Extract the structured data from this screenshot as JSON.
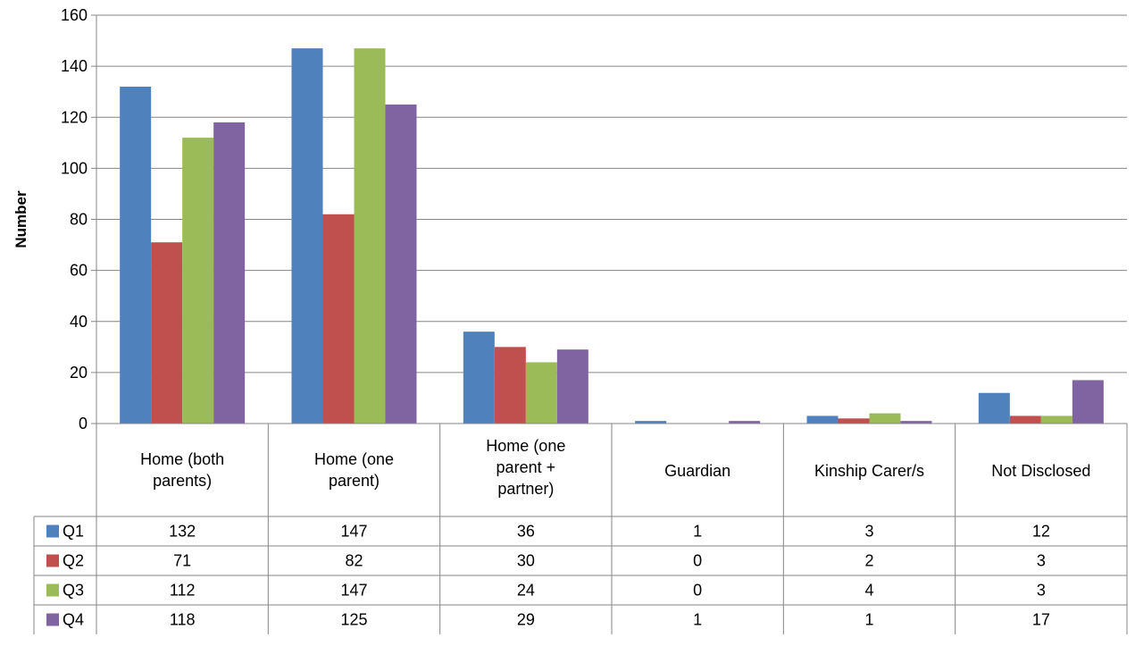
{
  "chart_data": {
    "type": "bar",
    "ylabel": "Number",
    "xlabel": "",
    "ylim": [
      0,
      160
    ],
    "yticks": [
      0,
      20,
      40,
      60,
      80,
      100,
      120,
      140,
      160
    ],
    "grid": true,
    "legend": "data-table-left",
    "categories": [
      [
        "Home (both",
        "parents)"
      ],
      [
        "Home (one",
        "parent)"
      ],
      [
        "Home (one",
        "parent +",
        "partner)"
      ],
      [
        "Guardian"
      ],
      [
        "Kinship Carer/s"
      ],
      [
        "Not Disclosed"
      ]
    ],
    "series": [
      {
        "name": "Q1",
        "color": "#4F81BD",
        "values": [
          132,
          147,
          36,
          1,
          3,
          12
        ]
      },
      {
        "name": "Q2",
        "color": "#C0504D",
        "values": [
          71,
          82,
          30,
          0,
          2,
          3
        ]
      },
      {
        "name": "Q3",
        "color": "#9BBB59",
        "values": [
          112,
          147,
          24,
          0,
          4,
          3
        ]
      },
      {
        "name": "Q4",
        "color": "#8064A2",
        "values": [
          118,
          125,
          29,
          1,
          1,
          17
        ]
      }
    ]
  }
}
